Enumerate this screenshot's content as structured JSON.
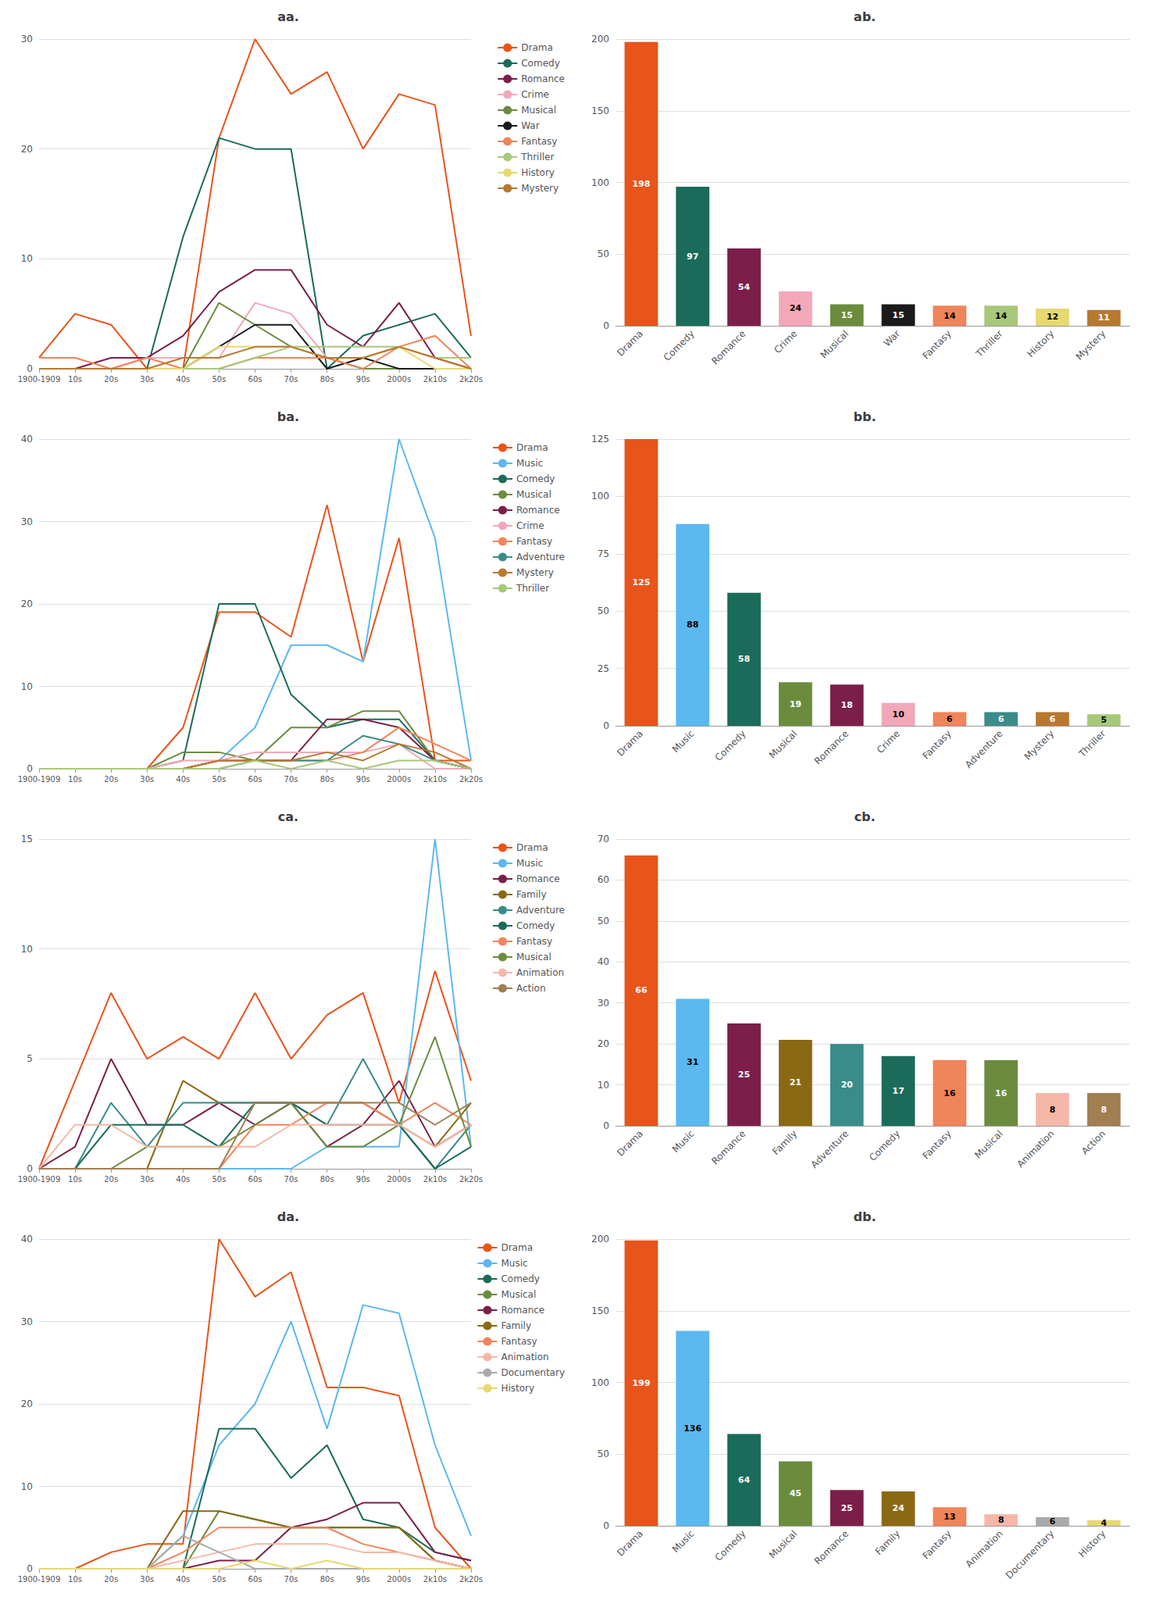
{
  "chart_data": [
    {
      "type": "line",
      "title": "aa.",
      "categories": [
        "1900-1909",
        "10s",
        "20s",
        "30s",
        "40s",
        "50s",
        "60s",
        "70s",
        "80s",
        "90s",
        "2000s",
        "2k10s",
        "2k20s"
      ],
      "series": [
        {
          "name": "Drama",
          "color": "#E8541A",
          "values": [
            1,
            5,
            4,
            0,
            0,
            21,
            30,
            25,
            27,
            20,
            25,
            24,
            3
          ]
        },
        {
          "name": "Comedy",
          "color": "#1B6B5A",
          "values": [
            0,
            0,
            0,
            0,
            12,
            21,
            20,
            20,
            0,
            3,
            4,
            5,
            1
          ]
        },
        {
          "name": "Romance",
          "color": "#7B1E4A",
          "values": [
            0,
            0,
            1,
            1,
            3,
            7,
            9,
            9,
            4,
            2,
            6,
            1,
            0
          ]
        },
        {
          "name": "Crime",
          "color": "#F2A8B8",
          "values": [
            0,
            0,
            0,
            1,
            1,
            1,
            6,
            5,
            1,
            1,
            2,
            1,
            0
          ]
        },
        {
          "name": "Musical",
          "color": "#6B8C3E",
          "values": [
            0,
            0,
            0,
            0,
            0,
            6,
            4,
            2,
            1,
            0,
            0,
            0,
            0
          ]
        },
        {
          "name": "War",
          "color": "#1A1A1A",
          "values": [
            0,
            0,
            0,
            0,
            0,
            2,
            4,
            4,
            0,
            1,
            0,
            0,
            0
          ]
        },
        {
          "name": "Fantasy",
          "color": "#F0845A",
          "values": [
            1,
            1,
            0,
            1,
            0,
            0,
            1,
            1,
            1,
            0,
            2,
            3,
            0
          ]
        },
        {
          "name": "Thriller",
          "color": "#A8C87A",
          "values": [
            0,
            0,
            0,
            0,
            0,
            0,
            1,
            2,
            2,
            2,
            2,
            1,
            1
          ]
        },
        {
          "name": "History",
          "color": "#E8D870",
          "values": [
            0,
            0,
            0,
            0,
            0,
            2,
            2,
            2,
            1,
            1,
            2,
            0,
            0
          ]
        },
        {
          "name": "Mystery",
          "color": "#B87830",
          "values": [
            0,
            0,
            0,
            0,
            1,
            1,
            2,
            2,
            1,
            1,
            2,
            1,
            0
          ]
        }
      ],
      "ylim": [
        0,
        30
      ],
      "yticks": [
        0,
        10,
        20,
        30
      ],
      "grid": true,
      "legend": "right"
    },
    {
      "type": "bar",
      "title": "ab.",
      "categories": [
        "Drama",
        "Comedy",
        "Romance",
        "Crime",
        "Musical",
        "War",
        "Fantasy",
        "Thriller",
        "History",
        "Mystery"
      ],
      "values": [
        198,
        97,
        54,
        24,
        15,
        15,
        14,
        14,
        12,
        11
      ],
      "colors": [
        "#E8541A",
        "#1B6B5A",
        "#7B1E4A",
        "#F2A8B8",
        "#6B8C3E",
        "#1A1A1A",
        "#F0845A",
        "#A8C87A",
        "#E8D870",
        "#B87830"
      ],
      "ylim": [
        0,
        200
      ],
      "yticks": [
        0,
        50,
        100,
        150,
        200
      ],
      "grid": true,
      "data_labels": true
    },
    {
      "type": "line",
      "title": "ba.",
      "categories": [
        "1900-1909",
        "10s",
        "20s",
        "30s",
        "40s",
        "50s",
        "60s",
        "70s",
        "80s",
        "90s",
        "2000s",
        "2k10s",
        "2k20s"
      ],
      "series": [
        {
          "name": "Drama",
          "color": "#E8541A",
          "values": [
            0,
            0,
            0,
            0,
            5,
            19,
            19,
            16,
            32,
            13,
            28,
            1,
            1
          ]
        },
        {
          "name": "Music",
          "color": "#5BB8F0",
          "values": [
            0,
            0,
            0,
            0,
            0,
            1,
            5,
            15,
            15,
            13,
            40,
            28,
            1
          ]
        },
        {
          "name": "Comedy",
          "color": "#1B6B5A",
          "values": [
            0,
            0,
            0,
            0,
            1,
            20,
            20,
            9,
            5,
            6,
            6,
            1,
            0
          ]
        },
        {
          "name": "Musical",
          "color": "#6B8C3E",
          "values": [
            0,
            0,
            0,
            0,
            2,
            2,
            1,
            5,
            5,
            7,
            7,
            1,
            0
          ]
        },
        {
          "name": "Romance",
          "color": "#7B1E4A",
          "values": [
            0,
            0,
            0,
            0,
            0,
            1,
            1,
            1,
            6,
            6,
            5,
            1,
            0
          ]
        },
        {
          "name": "Crime",
          "color": "#F2A8B8",
          "values": [
            0,
            0,
            0,
            0,
            1,
            1,
            2,
            2,
            2,
            2,
            3,
            0,
            0
          ]
        },
        {
          "name": "Fantasy",
          "color": "#F0845A",
          "values": [
            0,
            0,
            0,
            0,
            0,
            1,
            1,
            1,
            1,
            2,
            5,
            3,
            1
          ]
        },
        {
          "name": "Adventure",
          "color": "#3A8C8A",
          "values": [
            0,
            0,
            0,
            0,
            0,
            0,
            1,
            1,
            1,
            4,
            3,
            1,
            0
          ]
        },
        {
          "name": "Mystery",
          "color": "#B87830",
          "values": [
            0,
            0,
            0,
            0,
            0,
            1,
            1,
            1,
            2,
            1,
            3,
            2,
            0
          ]
        },
        {
          "name": "Thriller",
          "color": "#A8C87A",
          "values": [
            0,
            0,
            0,
            0,
            0,
            0,
            1,
            0,
            1,
            0,
            1,
            1,
            0
          ]
        }
      ],
      "ylim": [
        0,
        40
      ],
      "yticks": [
        0,
        10,
        20,
        30,
        40
      ],
      "grid": true,
      "legend": "right"
    },
    {
      "type": "bar",
      "title": "bb.",
      "categories": [
        "Drama",
        "Music",
        "Comedy",
        "Musical",
        "Romance",
        "Crime",
        "Fantasy",
        "Adventure",
        "Mystery",
        "Thriller"
      ],
      "values": [
        125,
        88,
        58,
        19,
        18,
        10,
        6,
        6,
        6,
        5
      ],
      "colors": [
        "#E8541A",
        "#5BB8F0",
        "#1B6B5A",
        "#6B8C3E",
        "#7B1E4A",
        "#F2A8B8",
        "#F0845A",
        "#3A8C8A",
        "#B87830",
        "#A8C87A"
      ],
      "ylim": [
        0,
        125
      ],
      "yticks": [
        0,
        25,
        50,
        75,
        100,
        125
      ],
      "grid": true,
      "data_labels": true
    },
    {
      "type": "line",
      "title": "ca.",
      "categories": [
        "1900-1909",
        "10s",
        "20s",
        "30s",
        "40s",
        "50s",
        "60s",
        "70s",
        "80s",
        "90s",
        "2000s",
        "2k10s",
        "2k20s"
      ],
      "series": [
        {
          "name": "Drama",
          "color": "#E8541A",
          "values": [
            0,
            4,
            8,
            5,
            6,
            5,
            8,
            5,
            7,
            8,
            3,
            9,
            4
          ]
        },
        {
          "name": "Music",
          "color": "#5BB8F0",
          "values": [
            0,
            0,
            0,
            0,
            0,
            0,
            0,
            0,
            1,
            1,
            1,
            15,
            1
          ]
        },
        {
          "name": "Romance",
          "color": "#7B1E4A",
          "values": [
            0,
            1,
            5,
            2,
            2,
            3,
            2,
            3,
            1,
            2,
            4,
            1,
            2
          ]
        },
        {
          "name": "Family",
          "color": "#8B6914",
          "values": [
            0,
            0,
            0,
            0,
            4,
            3,
            3,
            3,
            3,
            3,
            2,
            1,
            3
          ]
        },
        {
          "name": "Adventure",
          "color": "#3A8C8A",
          "values": [
            0,
            0,
            3,
            1,
            3,
            3,
            3,
            3,
            2,
            5,
            2,
            0,
            2
          ]
        },
        {
          "name": "Comedy",
          "color": "#1B6B5A",
          "values": [
            0,
            0,
            2,
            2,
            2,
            1,
            3,
            3,
            2,
            2,
            2,
            0,
            1
          ]
        },
        {
          "name": "Fantasy",
          "color": "#F0845A",
          "values": [
            0,
            0,
            0,
            0,
            0,
            0,
            2,
            2,
            3,
            3,
            2,
            3,
            2
          ]
        },
        {
          "name": "Musical",
          "color": "#6B8C3E",
          "values": [
            0,
            0,
            0,
            1,
            1,
            1,
            2,
            3,
            1,
            1,
            2,
            6,
            1
          ]
        },
        {
          "name": "Animation",
          "color": "#F5B8A8",
          "values": [
            0,
            2,
            2,
            1,
            1,
            1,
            1,
            2,
            2,
            2,
            2,
            1,
            2
          ]
        },
        {
          "name": "Action",
          "color": "#A08050",
          "values": [
            0,
            0,
            0,
            0,
            0,
            0,
            3,
            3,
            3,
            3,
            3,
            2,
            3
          ]
        }
      ],
      "ylim": [
        0,
        15
      ],
      "yticks": [
        0,
        5,
        10,
        15
      ],
      "grid": true,
      "legend": "right"
    },
    {
      "type": "bar",
      "title": "cb.",
      "categories": [
        "Drama",
        "Music",
        "Romance",
        "Family",
        "Adventure",
        "Comedy",
        "Fantasy",
        "Musical",
        "Animation",
        "Action"
      ],
      "values": [
        66,
        31,
        25,
        21,
        20,
        17,
        16,
        16,
        8,
        8
      ],
      "colors": [
        "#E8541A",
        "#5BB8F0",
        "#7B1E4A",
        "#8B6914",
        "#3A8C8A",
        "#1B6B5A",
        "#F0845A",
        "#6B8C3E",
        "#F5B8A8",
        "#A08050"
      ],
      "ylim": [
        0,
        70
      ],
      "yticks": [
        0,
        10,
        20,
        30,
        40,
        50,
        60,
        70
      ],
      "grid": true,
      "data_labels": true
    },
    {
      "type": "line",
      "title": "da.",
      "categories": [
        "1900-1909",
        "10s",
        "20s",
        "30s",
        "40s",
        "50s",
        "60s",
        "70s",
        "80s",
        "90s",
        "2000s",
        "2k10s",
        "2k20s"
      ],
      "series": [
        {
          "name": "Drama",
          "color": "#E8541A",
          "values": [
            0,
            0,
            2,
            3,
            3,
            40,
            33,
            36,
            22,
            22,
            21,
            5,
            0
          ]
        },
        {
          "name": "Music",
          "color": "#5BB8F0",
          "values": [
            0,
            0,
            0,
            0,
            4,
            15,
            20,
            30,
            17,
            32,
            31,
            15,
            4
          ]
        },
        {
          "name": "Comedy",
          "color": "#1B6B5A",
          "values": [
            0,
            0,
            0,
            0,
            0,
            17,
            17,
            11,
            15,
            6,
            5,
            2,
            1
          ]
        },
        {
          "name": "Musical",
          "color": "#6B8C3E",
          "values": [
            0,
            0,
            0,
            0,
            0,
            7,
            6,
            5,
            5,
            5,
            5,
            1,
            0
          ]
        },
        {
          "name": "Romance",
          "color": "#7B1E4A",
          "values": [
            0,
            0,
            0,
            0,
            0,
            1,
            1,
            5,
            6,
            8,
            8,
            2,
            1
          ]
        },
        {
          "name": "Family",
          "color": "#8B6914",
          "values": [
            0,
            0,
            0,
            0,
            7,
            7,
            6,
            5,
            5,
            5,
            5,
            1,
            0
          ]
        },
        {
          "name": "Fantasy",
          "color": "#F0845A",
          "values": [
            0,
            0,
            0,
            0,
            2,
            5,
            5,
            5,
            5,
            3,
            2,
            1,
            0
          ]
        },
        {
          "name": "Animation",
          "color": "#F5B8A8",
          "values": [
            0,
            0,
            0,
            0,
            1,
            2,
            3,
            3,
            3,
            2,
            2,
            1,
            0
          ]
        },
        {
          "name": "Documentary",
          "color": "#AAAAAA",
          "values": [
            0,
            0,
            0,
            0,
            4,
            2,
            0,
            0,
            0,
            0,
            0,
            0,
            0
          ]
        },
        {
          "name": "History",
          "color": "#E8D870",
          "values": [
            0,
            0,
            0,
            0,
            0,
            0,
            1,
            0,
            1,
            0,
            0,
            0,
            0
          ]
        }
      ],
      "ylim": [
        0,
        40
      ],
      "yticks": [
        0,
        10,
        20,
        30,
        40
      ],
      "grid": true,
      "legend": "right"
    },
    {
      "type": "bar",
      "title": "db.",
      "categories": [
        "Drama",
        "Music",
        "Comedy",
        "Musical",
        "Romance",
        "Family",
        "Fantasy",
        "Animation",
        "Documentary",
        "History"
      ],
      "values": [
        199,
        136,
        64,
        45,
        25,
        24,
        13,
        8,
        6,
        4
      ],
      "colors": [
        "#E8541A",
        "#5BB8F0",
        "#1B6B5A",
        "#6B8C3E",
        "#7B1E4A",
        "#8B6914",
        "#F0845A",
        "#F5B8A8",
        "#AAAAAA",
        "#E8D870"
      ],
      "ylim": [
        0,
        200
      ],
      "yticks": [
        0,
        50,
        100,
        150,
        200
      ],
      "grid": true,
      "data_labels": true
    }
  ]
}
